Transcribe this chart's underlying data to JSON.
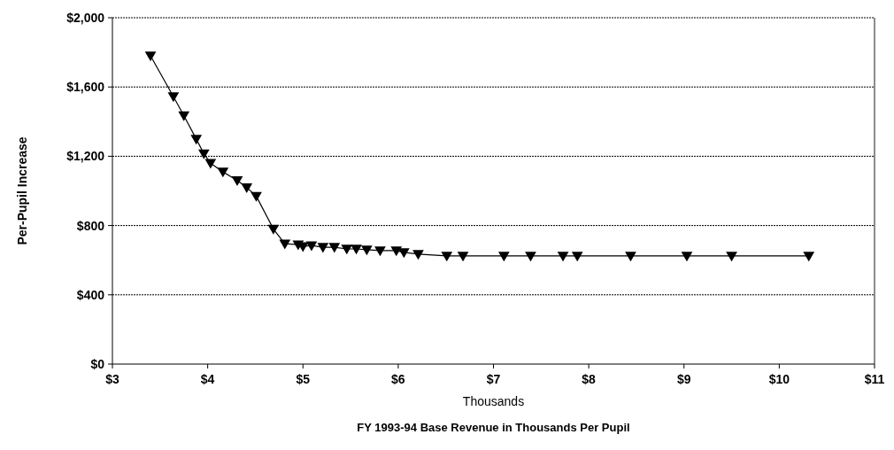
{
  "chart_data": {
    "type": "line",
    "xlabel": "FY 1993-94 Base Revenue in Thousands Per Pupil",
    "ylabel": "Per-Pupil Increase",
    "annotations": [
      "Thousands"
    ],
    "x": [
      3.4,
      3.64,
      3.75,
      3.88,
      3.96,
      4.03,
      4.16,
      4.31,
      4.41,
      4.51,
      4.69,
      4.81,
      4.95,
      5.0,
      5.09,
      5.21,
      5.33,
      5.46,
      5.56,
      5.67,
      5.81,
      5.98,
      6.06,
      6.21,
      6.51,
      6.68,
      7.11,
      7.39,
      7.73,
      7.88,
      8.44,
      9.03,
      9.5,
      10.31
    ],
    "series": [
      {
        "color": "#000000",
        "values": [
          1780,
          1545,
          1435,
          1300,
          1215,
          1160,
          1110,
          1060,
          1020,
          970,
          780,
          695,
          690,
          680,
          685,
          675,
          675,
          665,
          665,
          660,
          655,
          655,
          645,
          635,
          625,
          625,
          625,
          625,
          625,
          625,
          625,
          625,
          625,
          625
        ]
      }
    ],
    "xlim": [
      3,
      11
    ],
    "xticks": [
      {
        "value": 3,
        "label": "$3"
      },
      {
        "value": 4,
        "label": "$4"
      },
      {
        "value": 5,
        "label": "$5"
      },
      {
        "value": 6,
        "label": "$6"
      },
      {
        "value": 7,
        "label": "$7"
      },
      {
        "value": 8,
        "label": "$8"
      },
      {
        "value": 9,
        "label": "$9"
      },
      {
        "value": 10,
        "label": "$10"
      },
      {
        "value": 11,
        "label": "$11"
      }
    ],
    "ylim": [
      0,
      2000
    ],
    "yticks": [
      {
        "value": 0,
        "label": "$0"
      },
      {
        "value": 400,
        "label": "$400"
      },
      {
        "value": 800,
        "label": "$800"
      },
      {
        "value": 1200,
        "label": "$1,200"
      },
      {
        "value": 1600,
        "label": "$1,600"
      },
      {
        "value": 2000,
        "label": "$2,000"
      }
    ],
    "grid": "y",
    "marker": "triangle",
    "line_style": "solid"
  }
}
